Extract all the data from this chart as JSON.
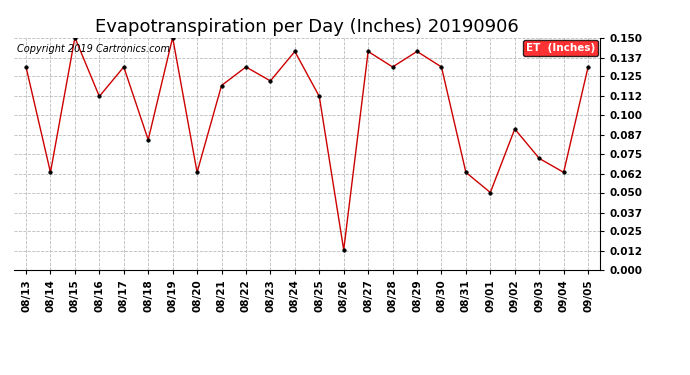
{
  "title": "Evapotranspiration per Day (Inches) 20190906",
  "copyright": "Copyright 2019 Cartronics.com",
  "legend_label": "ET  (Inches)",
  "legend_bg": "#ff0000",
  "legend_text_color": "#ffffff",
  "dates": [
    "08/13",
    "08/14",
    "08/15",
    "08/16",
    "08/17",
    "08/18",
    "08/19",
    "08/20",
    "08/21",
    "08/22",
    "08/23",
    "08/24",
    "08/25",
    "08/26",
    "08/27",
    "08/28",
    "08/29",
    "08/30",
    "08/31",
    "09/01",
    "09/02",
    "09/03",
    "09/04",
    "09/05"
  ],
  "values": [
    0.131,
    0.063,
    0.15,
    0.112,
    0.131,
    0.084,
    0.15,
    0.063,
    0.119,
    0.131,
    0.122,
    0.141,
    0.112,
    0.013,
    0.141,
    0.131,
    0.141,
    0.131,
    0.063,
    0.05,
    0.091,
    0.072,
    0.063,
    0.131
  ],
  "line_color": "#cc0000",
  "marker_color": "#000000",
  "ylim": [
    0.0,
    0.15
  ],
  "yticks": [
    0.0,
    0.012,
    0.025,
    0.037,
    0.05,
    0.062,
    0.075,
    0.087,
    0.1,
    0.112,
    0.125,
    0.137,
    0.15
  ],
  "grid_color": "#bbbbbb",
  "bg_color": "#ffffff",
  "title_fontsize": 13,
  "tick_fontsize": 7.5,
  "copyright_fontsize": 7
}
